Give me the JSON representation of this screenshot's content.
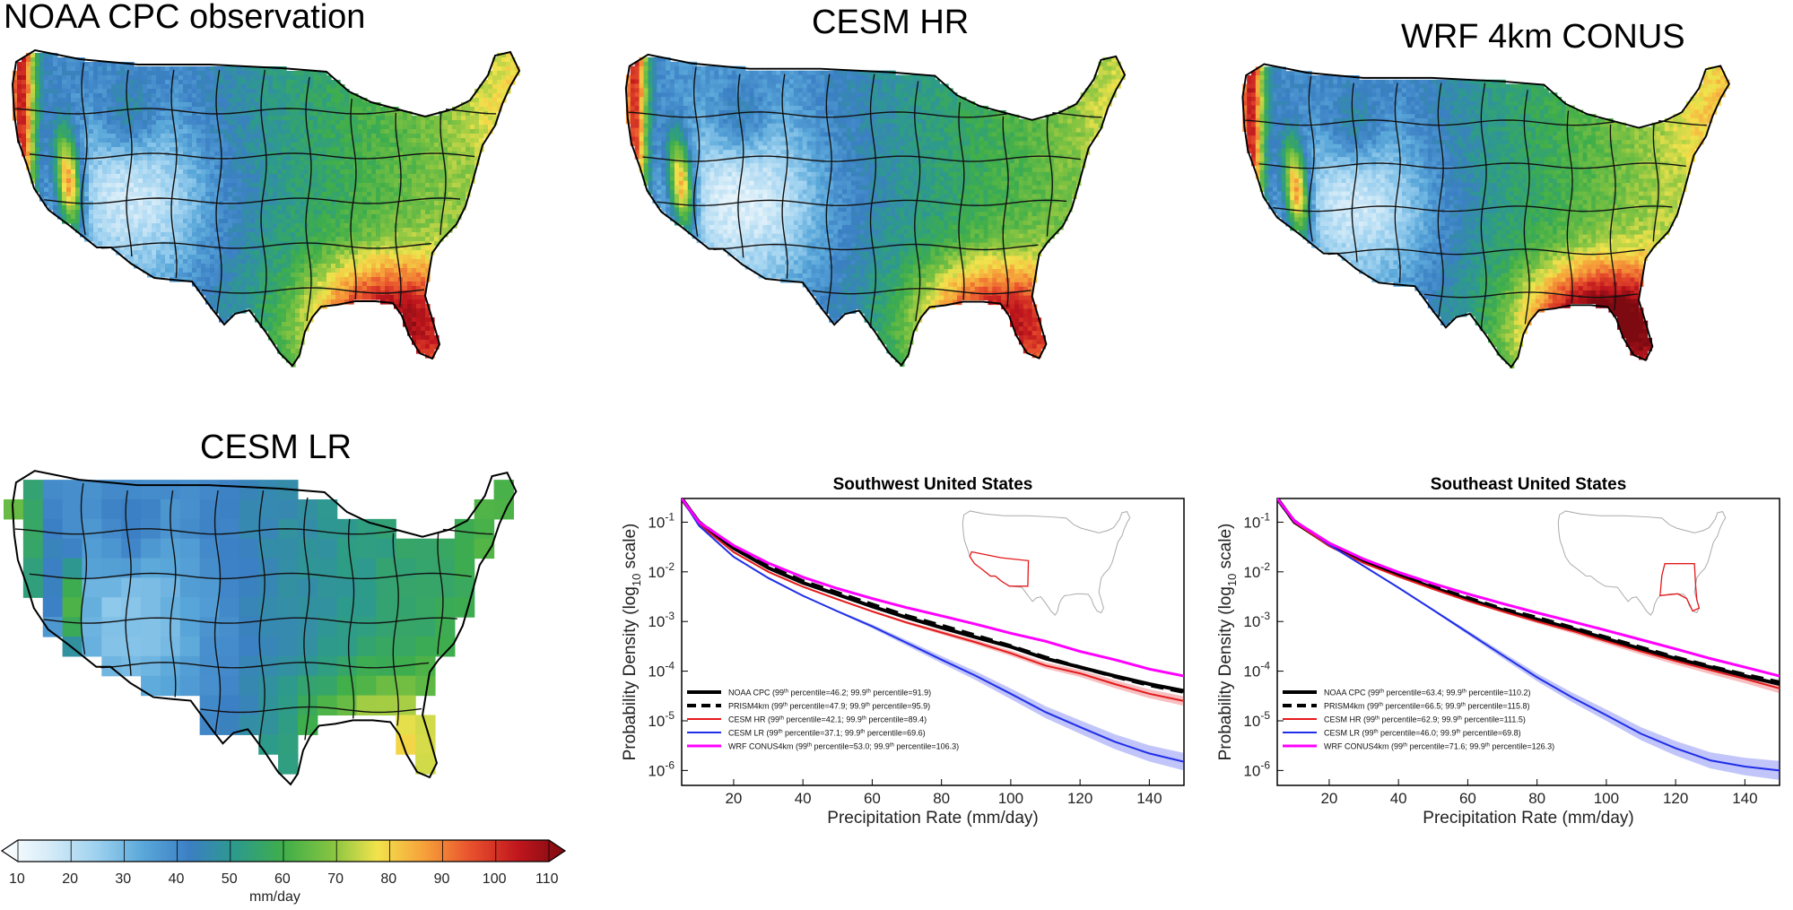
{
  "maps": [
    {
      "id": "obs",
      "title": "NOAA CPC observation",
      "style": "obs"
    },
    {
      "id": "hr",
      "title": "CESM HR",
      "style": "hr"
    },
    {
      "id": "wrf",
      "title": "WRF 4km CONUS",
      "style": "wrf"
    },
    {
      "id": "lr",
      "title": "CESM LR",
      "style": "lr"
    }
  ],
  "colorbar": {
    "ticks": [
      "10",
      "20",
      "30",
      "40",
      "50",
      "60",
      "70",
      "80",
      "90",
      "100",
      "110"
    ],
    "unit": "mm/day",
    "colors": [
      "#ffffff",
      "#d6ecf8",
      "#9fd2f0",
      "#5aa8da",
      "#3b7fc4",
      "#2d9b8a",
      "#3fae4a",
      "#82c341",
      "#f2e34c",
      "#f6a13a",
      "#e8502d",
      "#c0161d",
      "#7d0a11"
    ]
  },
  "chart_data": [
    {
      "type": "line",
      "title": "Southwest United States",
      "xlabel": "Precipitation Rate (mm/day)",
      "ylabel_parts": [
        "Probability Density (log",
        "10",
        " scale)"
      ],
      "xlim": [
        5,
        150
      ],
      "ylim": [
        5.01e-07,
        0.3
      ],
      "yscale": "log",
      "xticks": [
        20,
        40,
        60,
        80,
        100,
        120,
        140
      ],
      "yticks": [
        {
          "base": "10",
          "exp": "-1",
          "value": 0.1
        },
        {
          "base": "10",
          "exp": "-2",
          "value": 0.01
        },
        {
          "base": "10",
          "exp": "-3",
          "value": 0.001
        },
        {
          "base": "10",
          "exp": "-4",
          "value": 0.0001
        },
        {
          "base": "10",
          "exp": "-5",
          "value": 1e-05
        },
        {
          "base": "10",
          "exp": "-6",
          "value": 1e-06
        }
      ],
      "legend_position": "bottom-left",
      "inset_region": "southwest",
      "series": [
        {
          "name": "NOAA CPC",
          "p99": "46.2",
          "p999": "91.9",
          "color": "#000000",
          "dash": "solid",
          "width": 4,
          "x": [
            5,
            10,
            20,
            30,
            40,
            50,
            60,
            70,
            80,
            90,
            100,
            110,
            120,
            130,
            140,
            150
          ],
          "y": [
            0.3,
            0.1,
            0.03,
            0.012,
            0.006,
            0.0035,
            0.002,
            0.0012,
            0.00075,
            0.00048,
            0.00031,
            0.00018,
            0.00012,
            8e-05,
            5.5e-05,
            4e-05
          ]
        },
        {
          "name": "PRISM4km",
          "p99": "47.9",
          "p999": "95.9",
          "color": "#000000",
          "dash": "dashed",
          "width": 4,
          "x": [
            5,
            10,
            20,
            30,
            40,
            50,
            60,
            70,
            80,
            90,
            100,
            110,
            120,
            130,
            140,
            150
          ],
          "y": [
            0.3,
            0.1,
            0.032,
            0.013,
            0.0065,
            0.0038,
            0.0022,
            0.0013,
            0.00083,
            0.00052,
            0.00032,
            0.00019,
            0.00012,
            7.8e-05,
            5.2e-05,
            3.8e-05
          ]
        },
        {
          "name": "CESM HR",
          "p99": "42.1",
          "p999": "89.4",
          "color": "#e41a1c",
          "dash": "solid",
          "width": 2,
          "x": [
            5,
            10,
            20,
            30,
            40,
            50,
            60,
            70,
            80,
            90,
            100,
            110,
            120,
            130,
            140,
            150
          ],
          "y": [
            0.3,
            0.09,
            0.025,
            0.01,
            0.005,
            0.0028,
            0.0016,
            0.00095,
            0.0006,
            0.00038,
            0.00023,
            0.00013,
            9e-05,
            5.5e-05,
            3.5e-05,
            2.5e-05
          ],
          "band": 0.25
        },
        {
          "name": "CESM LR",
          "p99": "37.1",
          "p999": "69.6",
          "color": "#1f2ee8",
          "dash": "solid",
          "width": 2,
          "x": [
            5,
            10,
            20,
            30,
            40,
            50,
            60,
            70,
            80,
            90,
            100,
            110,
            120,
            130,
            140,
            150
          ],
          "y": [
            0.3,
            0.085,
            0.02,
            0.0075,
            0.0033,
            0.0016,
            0.0008,
            0.00037,
            0.00017,
            8e-05,
            3.5e-05,
            1.5e-05,
            7.5e-06,
            3.8e-06,
            2.2e-06,
            1.5e-06
          ],
          "band": 0.5
        },
        {
          "name": "WRF CONUS4km",
          "p99": "53.0",
          "p999": "106.3",
          "color": "#ff00ff",
          "dash": "solid",
          "width": 3,
          "x": [
            5,
            10,
            20,
            30,
            40,
            50,
            60,
            70,
            80,
            90,
            100,
            110,
            120,
            130,
            140,
            150
          ],
          "y": [
            0.3,
            0.1,
            0.034,
            0.015,
            0.0078,
            0.0046,
            0.0029,
            0.0019,
            0.0013,
            0.00088,
            0.00058,
            0.0004,
            0.00025,
            0.00017,
            0.00011,
            8e-05
          ]
        }
      ]
    },
    {
      "type": "line",
      "title": "Southeast United States",
      "xlabel": "Precipitation Rate (mm/day)",
      "ylabel_parts": [
        "Probability Density (log",
        "10",
        " scale)"
      ],
      "xlim": [
        5,
        150
      ],
      "ylim": [
        5.01e-07,
        0.3
      ],
      "yscale": "log",
      "xticks": [
        20,
        40,
        60,
        80,
        100,
        120,
        140
      ],
      "yticks": [
        {
          "base": "10",
          "exp": "-1",
          "value": 0.1
        },
        {
          "base": "10",
          "exp": "-2",
          "value": 0.01
        },
        {
          "base": "10",
          "exp": "-3",
          "value": 0.001
        },
        {
          "base": "10",
          "exp": "-4",
          "value": 0.0001
        },
        {
          "base": "10",
          "exp": "-5",
          "value": 1e-05
        },
        {
          "base": "10",
          "exp": "-6",
          "value": 1e-06
        }
      ],
      "legend_position": "bottom-left",
      "inset_region": "southeast",
      "series": [
        {
          "name": "NOAA CPC",
          "p99": "63.4",
          "p999": "110.2",
          "color": "#000000",
          "dash": "solid",
          "width": 4,
          "x": [
            5,
            10,
            20,
            30,
            40,
            50,
            60,
            70,
            80,
            90,
            100,
            110,
            120,
            130,
            140,
            150
          ],
          "y": [
            0.3,
            0.1,
            0.035,
            0.016,
            0.0085,
            0.0048,
            0.0028,
            0.0017,
            0.0011,
            0.00072,
            0.00045,
            0.00028,
            0.00018,
            0.00012,
            8e-05,
            5.5e-05
          ]
        },
        {
          "name": "PRISM4km",
          "p99": "66.5",
          "p999": "115.8",
          "color": "#000000",
          "dash": "dashed",
          "width": 4,
          "x": [
            5,
            10,
            20,
            30,
            40,
            50,
            60,
            70,
            80,
            90,
            100,
            110,
            120,
            130,
            140,
            150
          ],
          "y": [
            0.3,
            0.1,
            0.036,
            0.017,
            0.009,
            0.005,
            0.003,
            0.0018,
            0.0012,
            0.00076,
            0.00048,
            0.0003,
            0.00019,
            0.000125,
            8.5e-05,
            6e-05
          ]
        },
        {
          "name": "CESM HR",
          "p99": "62.9",
          "p999": "111.5",
          "color": "#e41a1c",
          "dash": "solid",
          "width": 2,
          "x": [
            5,
            10,
            20,
            30,
            40,
            50,
            60,
            70,
            80,
            90,
            100,
            110,
            120,
            130,
            140,
            150
          ],
          "y": [
            0.3,
            0.1,
            0.033,
            0.015,
            0.008,
            0.0045,
            0.0026,
            0.0016,
            0.001,
            0.00065,
            0.0004,
            0.00025,
            0.00016,
            0.000105,
            7e-05,
            4.5e-05
          ],
          "band": 0.25
        },
        {
          "name": "CESM LR",
          "p99": "46.0",
          "p999": "69.8",
          "color": "#1f2ee8",
          "dash": "solid",
          "width": 2,
          "x": [
            5,
            10,
            20,
            30,
            40,
            50,
            60,
            70,
            80,
            90,
            100,
            110,
            120,
            130,
            140,
            150
          ],
          "y": [
            0.3,
            0.11,
            0.035,
            0.013,
            0.0048,
            0.0017,
            0.0006,
            0.00021,
            7.5e-05,
            3e-05,
            1.3e-05,
            5.5e-06,
            2.8e-06,
            1.6e-06,
            1.2e-06,
            1e-06
          ],
          "band": 0.55
        },
        {
          "name": "WRF CONUS4km",
          "p99": "71.6",
          "p999": "126.3",
          "color": "#ff00ff",
          "dash": "solid",
          "width": 3,
          "x": [
            5,
            10,
            20,
            30,
            40,
            50,
            60,
            70,
            80,
            90,
            100,
            110,
            120,
            130,
            140,
            150
          ],
          "y": [
            0.3,
            0.105,
            0.038,
            0.018,
            0.0098,
            0.0058,
            0.0036,
            0.0023,
            0.0015,
            0.001,
            0.00066,
            0.00043,
            0.00028,
            0.00018,
            0.00012,
            8e-05
          ]
        }
      ]
    }
  ]
}
